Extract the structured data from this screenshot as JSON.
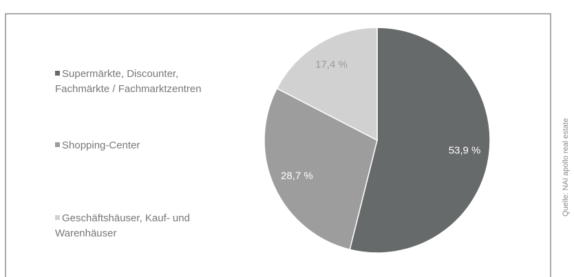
{
  "chart_data": {
    "type": "pie",
    "categories": [
      "Supermärkte, Discounter, Fachmärkte / Fachmarktzentren",
      "Shopping-Center",
      "Geschäftshäuser, Kauf- und Warenhäuser"
    ],
    "values": [
      53.9,
      28.7,
      17.4
    ],
    "value_labels": [
      "53,9 %",
      "28,7 %",
      "17,4 %"
    ],
    "colors": [
      "#676a6b",
      "#9d9d9d",
      "#d1d1d1"
    ],
    "source": "Quelle: NAI apollo real estate"
  }
}
